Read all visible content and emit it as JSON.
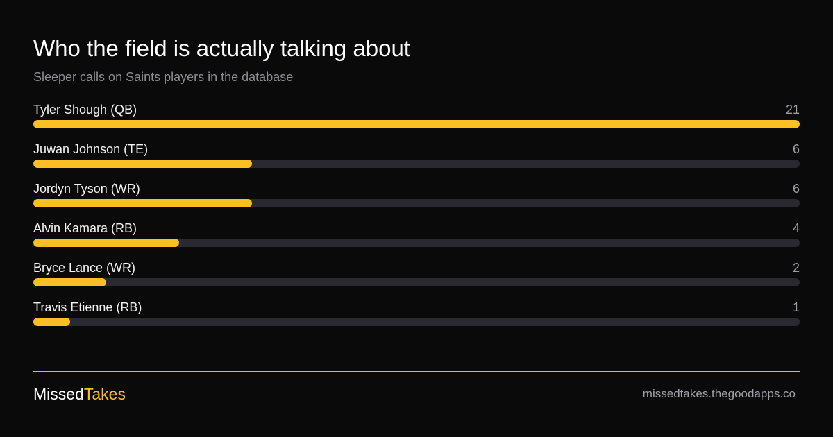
{
  "title": "Who the field is actually talking about",
  "subtitle": "Sleeper calls on Saints players in the database",
  "chart_data": {
    "type": "bar",
    "orientation": "horizontal",
    "categories": [
      "Tyler Shough (QB)",
      "Juwan Johnson (TE)",
      "Jordyn Tyson (WR)",
      "Alvin Kamara (RB)",
      "Bryce Lance (WR)",
      "Travis Etienne (RB)"
    ],
    "values": [
      21,
      6,
      6,
      4,
      2,
      1
    ],
    "xlim": [
      0,
      21
    ],
    "grid": false,
    "legend": "none",
    "bar_color": "#fbbf24",
    "track_color": "#2a2830"
  },
  "footer": {
    "brand_part1": "Missed",
    "brand_part2": "Takes",
    "brand_accent": "#fbbf24",
    "divider_color": "#f0b43c",
    "site": "missedtakes.thegoodapps.co"
  }
}
